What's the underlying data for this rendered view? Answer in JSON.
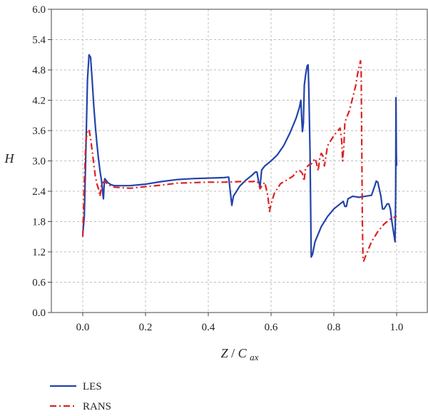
{
  "chart_data": {
    "type": "line",
    "title": "",
    "xlabel_main": "Z",
    "xlabel_div": "/",
    "xlabel_c": "C",
    "xlabel_sub": "ax",
    "ylabel": "H",
    "xlim": [
      -0.1,
      1.1
    ],
    "ylim": [
      0,
      6
    ],
    "xticks": [
      0.0,
      0.2,
      0.4,
      0.6,
      0.8,
      1.0
    ],
    "xtick_labels": [
      "0.0",
      "0.2",
      "0.4",
      "0.6",
      "0.8",
      "1.0"
    ],
    "yticks": [
      0.0,
      0.6,
      1.2,
      1.8,
      2.4,
      3.0,
      3.6,
      4.2,
      4.8,
      5.4,
      6.0
    ],
    "ytick_labels": [
      "0.0",
      "0.6",
      "1.2",
      "1.8",
      "2.4",
      "3.0",
      "3.6",
      "4.2",
      "4.8",
      "5.4",
      "6.0"
    ],
    "grid": true,
    "legend_position": "bottom-left, below plot",
    "series": [
      {
        "name": "LES",
        "color": "#2244aa",
        "style": "solid",
        "points": [
          [
            0.0,
            1.55
          ],
          [
            0.005,
            1.9
          ],
          [
            0.01,
            3.2
          ],
          [
            0.015,
            4.6
          ],
          [
            0.02,
            5.1
          ],
          [
            0.025,
            5.05
          ],
          [
            0.03,
            4.6
          ],
          [
            0.035,
            4.1
          ],
          [
            0.04,
            3.7
          ],
          [
            0.045,
            3.35
          ],
          [
            0.05,
            3.05
          ],
          [
            0.055,
            2.8
          ],
          [
            0.06,
            2.6
          ],
          [
            0.063,
            2.4
          ],
          [
            0.066,
            2.25
          ],
          [
            0.068,
            2.5
          ],
          [
            0.07,
            2.65
          ],
          [
            0.08,
            2.57
          ],
          [
            0.09,
            2.53
          ],
          [
            0.1,
            2.51
          ],
          [
            0.15,
            2.51
          ],
          [
            0.2,
            2.54
          ],
          [
            0.25,
            2.59
          ],
          [
            0.3,
            2.63
          ],
          [
            0.35,
            2.65
          ],
          [
            0.4,
            2.66
          ],
          [
            0.45,
            2.67
          ],
          [
            0.465,
            2.68
          ],
          [
            0.47,
            2.4
          ],
          [
            0.475,
            2.12
          ],
          [
            0.48,
            2.3
          ],
          [
            0.5,
            2.5
          ],
          [
            0.52,
            2.62
          ],
          [
            0.54,
            2.72
          ],
          [
            0.55,
            2.78
          ],
          [
            0.555,
            2.78
          ],
          [
            0.56,
            2.6
          ],
          [
            0.565,
            2.5
          ],
          [
            0.57,
            2.82
          ],
          [
            0.58,
            2.9
          ],
          [
            0.6,
            3.0
          ],
          [
            0.62,
            3.12
          ],
          [
            0.64,
            3.3
          ],
          [
            0.66,
            3.55
          ],
          [
            0.68,
            3.85
          ],
          [
            0.69,
            4.05
          ],
          [
            0.695,
            4.2
          ],
          [
            0.698,
            3.8
          ],
          [
            0.7,
            3.58
          ],
          [
            0.703,
            3.75
          ],
          [
            0.706,
            4.5
          ],
          [
            0.71,
            4.7
          ],
          [
            0.715,
            4.88
          ],
          [
            0.718,
            4.9
          ],
          [
            0.72,
            4.5
          ],
          [
            0.724,
            3.2
          ],
          [
            0.728,
            1.1
          ],
          [
            0.732,
            1.15
          ],
          [
            0.74,
            1.4
          ],
          [
            0.76,
            1.7
          ],
          [
            0.78,
            1.9
          ],
          [
            0.8,
            2.05
          ],
          [
            0.82,
            2.15
          ],
          [
            0.83,
            2.2
          ],
          [
            0.835,
            2.1
          ],
          [
            0.84,
            2.1
          ],
          [
            0.845,
            2.25
          ],
          [
            0.86,
            2.3
          ],
          [
            0.88,
            2.28
          ],
          [
            0.9,
            2.3
          ],
          [
            0.92,
            2.32
          ],
          [
            0.93,
            2.5
          ],
          [
            0.935,
            2.6
          ],
          [
            0.94,
            2.58
          ],
          [
            0.95,
            2.3
          ],
          [
            0.955,
            2.05
          ],
          [
            0.96,
            2.05
          ],
          [
            0.97,
            2.15
          ],
          [
            0.975,
            2.15
          ],
          [
            0.98,
            2.05
          ],
          [
            0.985,
            1.8
          ],
          [
            0.99,
            1.6
          ],
          [
            0.995,
            1.4
          ],
          [
            0.997,
            2.4
          ],
          [
            0.998,
            4.25
          ],
          [
            0.999,
            3.2
          ],
          [
            1.0,
            2.9
          ]
        ]
      },
      {
        "name": "RANS",
        "color": "#dd2222",
        "style": "dashdot",
        "points": [
          [
            0.0,
            1.5
          ],
          [
            0.005,
            2.6
          ],
          [
            0.01,
            3.4
          ],
          [
            0.015,
            3.6
          ],
          [
            0.02,
            3.62
          ],
          [
            0.025,
            3.45
          ],
          [
            0.03,
            3.2
          ],
          [
            0.035,
            2.95
          ],
          [
            0.04,
            2.7
          ],
          [
            0.045,
            2.55
          ],
          [
            0.05,
            2.45
          ],
          [
            0.055,
            2.3
          ],
          [
            0.06,
            2.55
          ],
          [
            0.07,
            2.6
          ],
          [
            0.08,
            2.53
          ],
          [
            0.1,
            2.48
          ],
          [
            0.15,
            2.46
          ],
          [
            0.2,
            2.49
          ],
          [
            0.25,
            2.52
          ],
          [
            0.3,
            2.56
          ],
          [
            0.35,
            2.57
          ],
          [
            0.4,
            2.58
          ],
          [
            0.45,
            2.58
          ],
          [
            0.5,
            2.59
          ],
          [
            0.54,
            2.59
          ],
          [
            0.555,
            2.6
          ],
          [
            0.56,
            2.55
          ],
          [
            0.565,
            2.45
          ],
          [
            0.57,
            2.5
          ],
          [
            0.58,
            2.58
          ],
          [
            0.59,
            2.3
          ],
          [
            0.595,
            2.0
          ],
          [
            0.6,
            2.15
          ],
          [
            0.61,
            2.35
          ],
          [
            0.62,
            2.45
          ],
          [
            0.63,
            2.55
          ],
          [
            0.65,
            2.62
          ],
          [
            0.67,
            2.7
          ],
          [
            0.68,
            2.78
          ],
          [
            0.69,
            2.82
          ],
          [
            0.7,
            2.75
          ],
          [
            0.705,
            2.6
          ],
          [
            0.71,
            2.85
          ],
          [
            0.72,
            2.92
          ],
          [
            0.73,
            2.95
          ],
          [
            0.74,
            3.05
          ],
          [
            0.745,
            2.95
          ],
          [
            0.75,
            2.8
          ],
          [
            0.755,
            3.05
          ],
          [
            0.76,
            3.15
          ],
          [
            0.765,
            3.1
          ],
          [
            0.77,
            2.9
          ],
          [
            0.775,
            3.1
          ],
          [
            0.78,
            3.3
          ],
          [
            0.8,
            3.5
          ],
          [
            0.81,
            3.58
          ],
          [
            0.82,
            3.65
          ],
          [
            0.825,
            3.4
          ],
          [
            0.828,
            3.0
          ],
          [
            0.832,
            3.3
          ],
          [
            0.835,
            3.75
          ],
          [
            0.84,
            3.85
          ],
          [
            0.85,
            4.0
          ],
          [
            0.86,
            4.25
          ],
          [
            0.87,
            4.5
          ],
          [
            0.875,
            4.7
          ],
          [
            0.88,
            4.85
          ],
          [
            0.885,
            4.98
          ],
          [
            0.887,
            4.8
          ],
          [
            0.889,
            3.2
          ],
          [
            0.891,
            1.8
          ],
          [
            0.893,
            1.05
          ],
          [
            0.895,
            1.02
          ],
          [
            0.9,
            1.1
          ],
          [
            0.91,
            1.25
          ],
          [
            0.92,
            1.4
          ],
          [
            0.94,
            1.6
          ],
          [
            0.96,
            1.75
          ],
          [
            0.98,
            1.85
          ],
          [
            0.99,
            1.88
          ],
          [
            1.0,
            1.9
          ]
        ]
      }
    ]
  }
}
